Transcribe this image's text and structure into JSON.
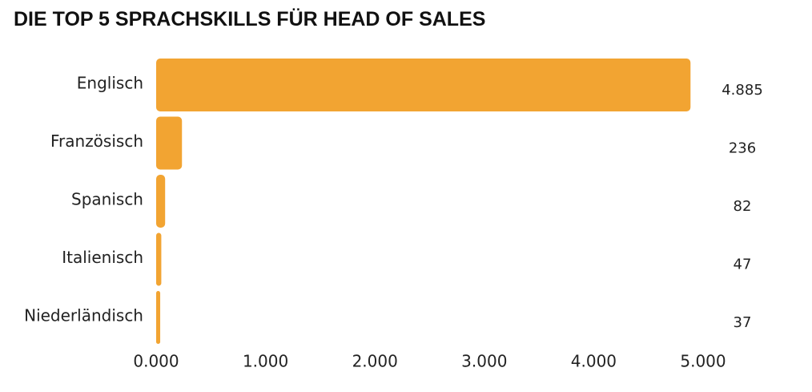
{
  "chart_data": {
    "type": "bar",
    "orientation": "horizontal",
    "title": "DIE TOP 5 SPRACHSKILLS FÜR HEAD OF SALES",
    "categories": [
      "Englisch",
      "Französisch",
      "Spanisch",
      "Italienisch",
      "Niederländisch"
    ],
    "values": [
      4885,
      236,
      82,
      47,
      37
    ],
    "value_labels": [
      "4.885",
      "236",
      "82",
      "47",
      "37"
    ],
    "xlim": [
      0,
      5000
    ],
    "x_ticks": [
      0,
      1000,
      2000,
      3000,
      4000,
      5000
    ],
    "x_tick_labels": [
      "0.000",
      "1.000",
      "2.000",
      "3.000",
      "4.000",
      "5.000"
    ],
    "bar_color": "#F2A432",
    "grid": false,
    "legend": "none"
  }
}
